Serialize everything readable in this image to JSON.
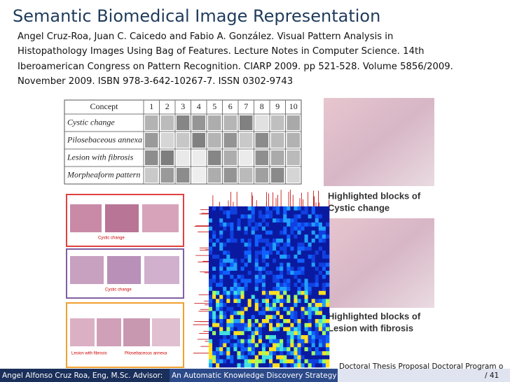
{
  "title": "Semantic Biomedical Image Representation",
  "citation": {
    "lines": [
      "Angel Cruz-Roa, Juan C. Caicedo and Fabio A. González. Visual Pattern Analysis in",
      "Histopathology Images Using Bag of Features. Lecture Notes in Computer Science. 14th",
      "Iberoamerican Congress on Pattern Recognition. CIARP 2009. pp 521-528. Volume 5856/2009.",
      "November 2009. ISBN 978-3-642-10267-7. ISSN 0302-9743"
    ]
  },
  "table": {
    "header": [
      "Concept",
      "1",
      "2",
      "3",
      "4",
      "5",
      "6",
      "7",
      "8",
      "9",
      "10"
    ],
    "rows": [
      "Cystic change",
      "Pilosebaceous annexa",
      "Lesion with fibrosis",
      "Morpheaform pattern"
    ]
  },
  "thumbnails": {
    "labels": [
      "Cystic change",
      "Cystic change",
      "Lesion with fibrosis",
      "Pilosebaceous annexa"
    ]
  },
  "captions": [
    [
      "Highlighted blocks of",
      "Cystic change"
    ],
    [
      "Highlighted blocks of",
      "Lesion with fibrosis"
    ]
  ],
  "footer": {
    "author": "Angel Alfonso Cruz Roa, Eng, M.Sc. Advisor:",
    "short_title": "An Automatic Knowledge Discovery Strategy",
    "institute": "Doctoral Thesis Proposal Doctoral Program o",
    "page": "/ 41"
  }
}
